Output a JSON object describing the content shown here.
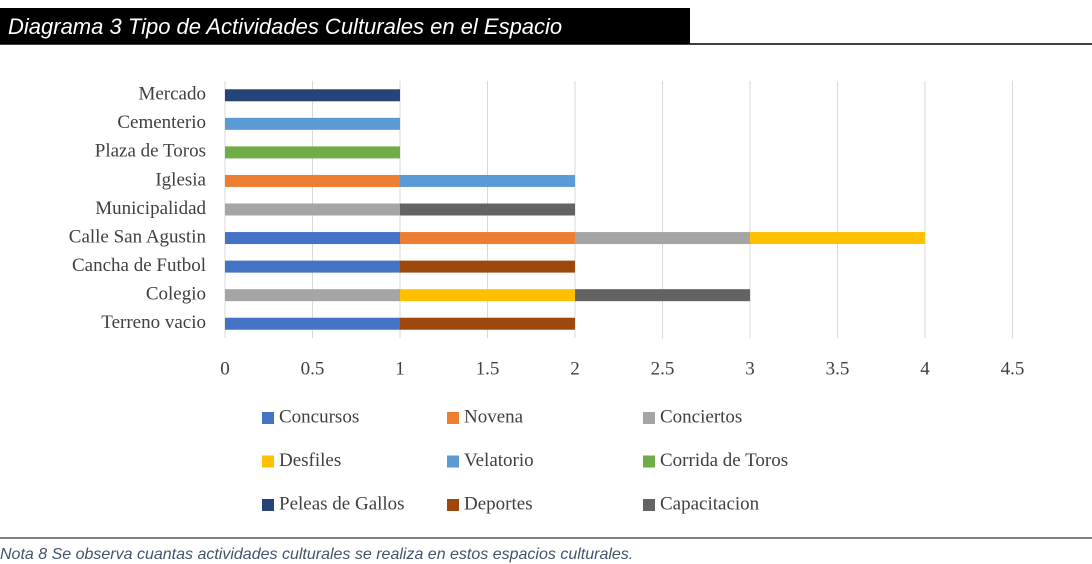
{
  "header": {
    "title": "Diagrama 3 Tipo de Actividades Culturales en el Espacio"
  },
  "chart_data": {
    "type": "stacked-bar-horizontal",
    "categories": [
      "Mercado",
      "Cementerio",
      "Plaza de Toros",
      "Iglesia",
      "Municipalidad",
      "Calle San Agustin",
      "Cancha de Futbol",
      "Colegio",
      "Terreno vacio"
    ],
    "series": [
      {
        "name": "Concursos",
        "color": "#4472c4",
        "values": [
          null,
          null,
          null,
          null,
          null,
          1,
          1,
          null,
          1
        ]
      },
      {
        "name": "Novena",
        "color": "#ed7d31",
        "values": [
          null,
          null,
          null,
          1,
          null,
          1,
          null,
          null,
          null
        ]
      },
      {
        "name": "Conciertos",
        "color": "#a5a5a5",
        "values": [
          null,
          null,
          null,
          null,
          1,
          1,
          null,
          1,
          null
        ]
      },
      {
        "name": "Desfiles",
        "color": "#ffc000",
        "values": [
          null,
          null,
          null,
          null,
          null,
          1,
          null,
          1,
          null
        ]
      },
      {
        "name": "Velatorio",
        "color": "#5b9bd5",
        "values": [
          null,
          1,
          null,
          1,
          null,
          null,
          null,
          null,
          null
        ]
      },
      {
        "name": "Corrida de Toros",
        "color": "#70ad47",
        "values": [
          null,
          null,
          1,
          null,
          null,
          null,
          null,
          null,
          null
        ]
      },
      {
        "name": "Peleas de Gallos",
        "color": "#264478",
        "values": [
          1,
          null,
          null,
          null,
          null,
          null,
          null,
          null,
          null
        ]
      },
      {
        "name": "Deportes",
        "color": "#9e480e",
        "values": [
          null,
          null,
          null,
          null,
          null,
          null,
          1,
          null,
          1
        ]
      },
      {
        "name": "Capacitacion",
        "color": "#636363",
        "values": [
          null,
          null,
          null,
          null,
          1,
          null,
          null,
          1,
          null
        ]
      }
    ],
    "xlim": [
      0,
      4.5
    ],
    "xticks": [
      0,
      0.5,
      1,
      1.5,
      2,
      2.5,
      3,
      3.5,
      4,
      4.5
    ],
    "grid": true,
    "legend": "bottom"
  },
  "footer": {
    "note": "Nota 8 Se observa cuantas actividades culturales se realiza en estos espacios culturales."
  }
}
